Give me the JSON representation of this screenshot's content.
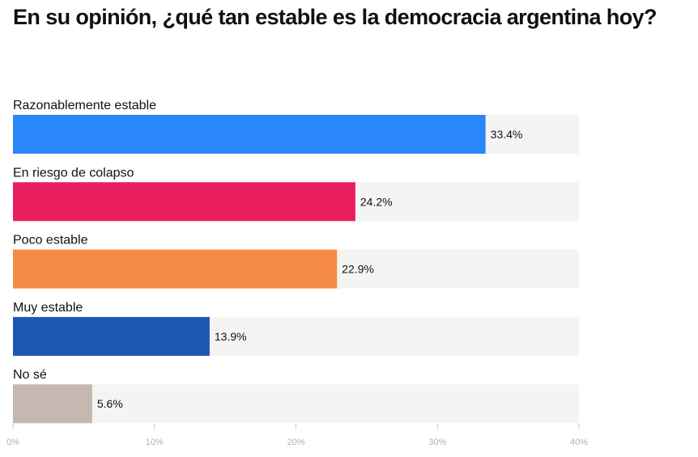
{
  "chart_data": {
    "type": "bar",
    "orientation": "horizontal",
    "title": "En su opinión, ¿qué tan estable es la democracia argentina hoy?",
    "categories": [
      "Razonablemente estable",
      "En riesgo de colapso",
      "Poco estable",
      "Muy estable",
      "No sé"
    ],
    "values": [
      33.4,
      24.2,
      22.9,
      13.9,
      5.6
    ],
    "value_labels": [
      "33.4%",
      "24.2%",
      "22.9%",
      "13.9%",
      "5.6%"
    ],
    "colors": [
      "#2a86fb",
      "#e91e5e",
      "#f48a45",
      "#1f58b2",
      "#c5b8b0"
    ],
    "track_color": "#f4f4f2",
    "xlim": [
      0,
      40
    ],
    "xticks": [
      0,
      10,
      20,
      30,
      40
    ],
    "xtick_labels": [
      "0%",
      "10%",
      "20%",
      "30%",
      "40%"
    ],
    "grid": false,
    "legend": "none"
  }
}
